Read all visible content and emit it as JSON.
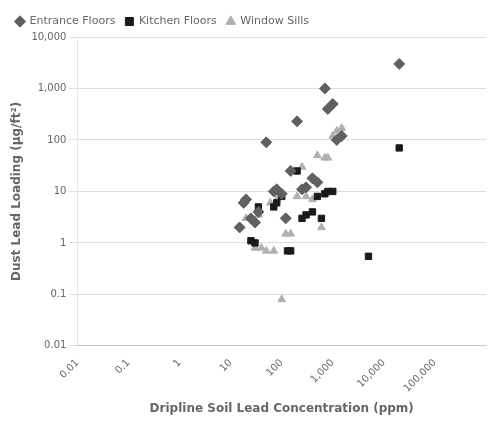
{
  "chart_data": {
    "type": "scatter",
    "xlabel": "Dripline Soil Lead Concentration (ppm)",
    "ylabel": "Dust Lead Loading (μg/ft²)",
    "log": true,
    "xlim": [
      0.01,
      1000000
    ],
    "ylim": [
      0.01,
      10000
    ],
    "xticks": [
      0.01,
      0.1,
      1,
      10,
      100,
      {
        "value": 1000,
        "label": "1,000"
      },
      {
        "value": 10000,
        "label": "10,000"
      },
      {
        "value": 100000,
        "label": "100,000"
      }
    ],
    "yticks": [
      0.01,
      0.1,
      1,
      10,
      100,
      {
        "value": 1000,
        "label": "1,000"
      },
      {
        "value": 10000,
        "label": "10,000"
      }
    ],
    "grid": "y",
    "legend": "upper left",
    "series": [
      {
        "name": "Entrance Floors",
        "color": "#606060",
        "marker": "diamond",
        "x": [
          15,
          18,
          20,
          25,
          30,
          35,
          50,
          70,
          80,
          100,
          120,
          150,
          200,
          250,
          300,
          400,
          500,
          700,
          800,
          1000,
          1200,
          1500,
          20000
        ],
        "values": [
          2.0,
          6.0,
          7.0,
          3.0,
          2.5,
          4.0,
          90.0,
          10.0,
          11.0,
          9.0,
          3.0,
          25.0,
          230.0,
          11.0,
          12.0,
          18.0,
          15.0,
          1000.0,
          400.0,
          500.0,
          100.0,
          120.0,
          3000.0
        ]
      },
      {
        "name": "Kitchen Floors",
        "color": "#1a1a1a",
        "marker": "square",
        "x": [
          25,
          30,
          35,
          70,
          80,
          100,
          130,
          150,
          200,
          250,
          300,
          400,
          500,
          600,
          700,
          800,
          1000,
          5000,
          20000
        ],
        "values": [
          1.1,
          1.0,
          5.0,
          5.0,
          6.0,
          8.0,
          0.7,
          0.7,
          25.0,
          3.0,
          3.5,
          4.0,
          8.0,
          3.0,
          9.0,
          10.0,
          10.0,
          0.55,
          70.0
        ]
      },
      {
        "name": "Window Sills",
        "color": "#b0b0b0",
        "marker": "triangle",
        "x": [
          20,
          30,
          35,
          40,
          50,
          60,
          70,
          80,
          100,
          120,
          150,
          200,
          250,
          300,
          400,
          500,
          600,
          700,
          800,
          1000,
          1200,
          1500
        ],
        "values": [
          3.0,
          0.8,
          3.5,
          0.8,
          0.7,
          6.0,
          0.7,
          7.0,
          0.08,
          1.5,
          1.5,
          8.0,
          30.0,
          8.0,
          7.0,
          50.0,
          2.0,
          45.0,
          45.0,
          120.0,
          150.0,
          170.0
        ]
      }
    ]
  }
}
